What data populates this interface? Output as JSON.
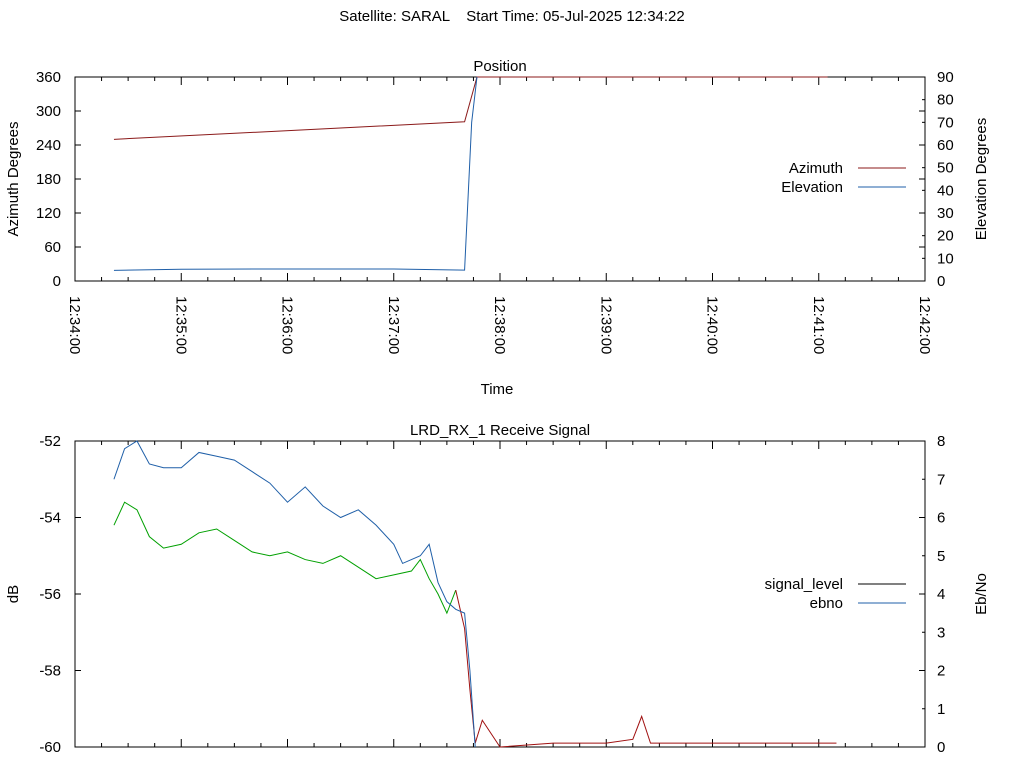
{
  "header": {
    "title": "Satellite: SARAL    Start Time: 05-Jul-2025 12:34:22"
  },
  "chart_data": [
    {
      "type": "line",
      "title": "Position",
      "xlabel": "Time",
      "ylabel": "Azimuth Degrees",
      "y2label": "Elevation Degrees",
      "x_ticks": [
        "12:34:00",
        "12:35:00",
        "12:36:00",
        "12:37:00",
        "12:38:00",
        "12:39:00",
        "12:40:00",
        "12:41:00",
        "12:42:00"
      ],
      "xlim": [
        "12:34:00",
        "12:42:00"
      ],
      "ylim": [
        0,
        360
      ],
      "y_ticks": [
        0,
        60,
        120,
        180,
        240,
        300,
        360
      ],
      "y2lim": [
        0,
        90
      ],
      "y2_ticks": [
        0,
        10,
        20,
        30,
        40,
        50,
        60,
        70,
        80,
        90
      ],
      "legend_position": "right",
      "grid": false,
      "series": [
        {
          "name": "Azimuth",
          "axis": "left",
          "color": "#8b1a1a",
          "x": [
            "12:34:22",
            "12:37:40",
            "12:37:47",
            "12:41:05"
          ],
          "y": [
            250,
            281,
            360,
            360
          ]
        },
        {
          "name": "Elevation",
          "axis": "right",
          "color": "#1f5fa8",
          "x": [
            "12:34:22",
            "12:35:00",
            "12:36:00",
            "12:37:00",
            "12:37:40",
            "12:37:44",
            "12:37:47"
          ],
          "y": [
            4.7,
            5.2,
            5.3,
            5.3,
            4.8,
            70,
            90
          ]
        }
      ]
    },
    {
      "type": "line",
      "title": "LRD_RX_1 Receive Signal",
      "ylabel": "dB",
      "y2label": "Eb/No",
      "ylim": [
        -60,
        -52
      ],
      "y_ticks": [
        -60,
        -58,
        -56,
        -54,
        -52
      ],
      "y2lim": [
        0,
        8
      ],
      "y2_ticks": [
        0,
        1,
        2,
        3,
        4,
        5,
        6,
        7,
        8
      ],
      "legend_position": "right",
      "grid": false,
      "series": [
        {
          "name": "signal_level",
          "axis": "left",
          "color": "#00a000",
          "color_after_drop": "#a01010",
          "x": [
            "12:34:22",
            "12:34:28",
            "12:34:35",
            "12:34:42",
            "12:34:50",
            "12:35:00",
            "12:35:10",
            "12:35:20",
            "12:35:30",
            "12:35:40",
            "12:35:50",
            "12:36:00",
            "12:36:10",
            "12:36:20",
            "12:36:30",
            "12:36:40",
            "12:36:50",
            "12:37:00",
            "12:37:10",
            "12:37:15",
            "12:37:20",
            "12:37:25",
            "12:37:30",
            "12:37:35",
            "12:37:40",
            "12:37:43",
            "12:37:46",
            "12:37:50",
            "12:38:00",
            "12:38:30",
            "12:39:00",
            "12:39:15",
            "12:39:20",
            "12:39:25",
            "12:39:40",
            "12:40:00",
            "12:40:30",
            "12:41:00",
            "12:41:10"
          ],
          "y": [
            -54.2,
            -53.6,
            -53.8,
            -54.5,
            -54.8,
            -54.7,
            -54.4,
            -54.3,
            -54.6,
            -54.9,
            -55.0,
            -54.9,
            -55.1,
            -55.2,
            -55.0,
            -55.3,
            -55.6,
            -55.5,
            -55.4,
            -55.1,
            -55.6,
            -56.0,
            -56.5,
            -55.9,
            -56.9,
            -58.5,
            -59.9,
            -59.3,
            -60.0,
            -59.9,
            -59.9,
            -59.8,
            -59.2,
            -59.9,
            -59.9,
            -59.9,
            -59.9,
            -59.9,
            -59.9
          ]
        },
        {
          "name": "ebno",
          "axis": "right",
          "color": "#1f5fa8",
          "x": [
            "12:34:22",
            "12:34:28",
            "12:34:35",
            "12:34:42",
            "12:34:50",
            "12:35:00",
            "12:35:10",
            "12:35:20",
            "12:35:30",
            "12:35:40",
            "12:35:50",
            "12:36:00",
            "12:36:10",
            "12:36:20",
            "12:36:30",
            "12:36:40",
            "12:36:50",
            "12:37:00",
            "12:37:05",
            "12:37:10",
            "12:37:15",
            "12:37:20",
            "12:37:25",
            "12:37:30",
            "12:37:35",
            "12:37:40",
            "12:37:43",
            "12:37:46"
          ],
          "y": [
            7.0,
            7.8,
            8.0,
            7.4,
            7.3,
            7.3,
            7.7,
            7.6,
            7.5,
            7.2,
            6.9,
            6.4,
            6.8,
            6.3,
            6.0,
            6.2,
            5.8,
            5.3,
            4.8,
            4.9,
            5.0,
            5.3,
            4.3,
            3.8,
            3.6,
            3.5,
            2.0,
            0.0
          ]
        }
      ]
    }
  ]
}
